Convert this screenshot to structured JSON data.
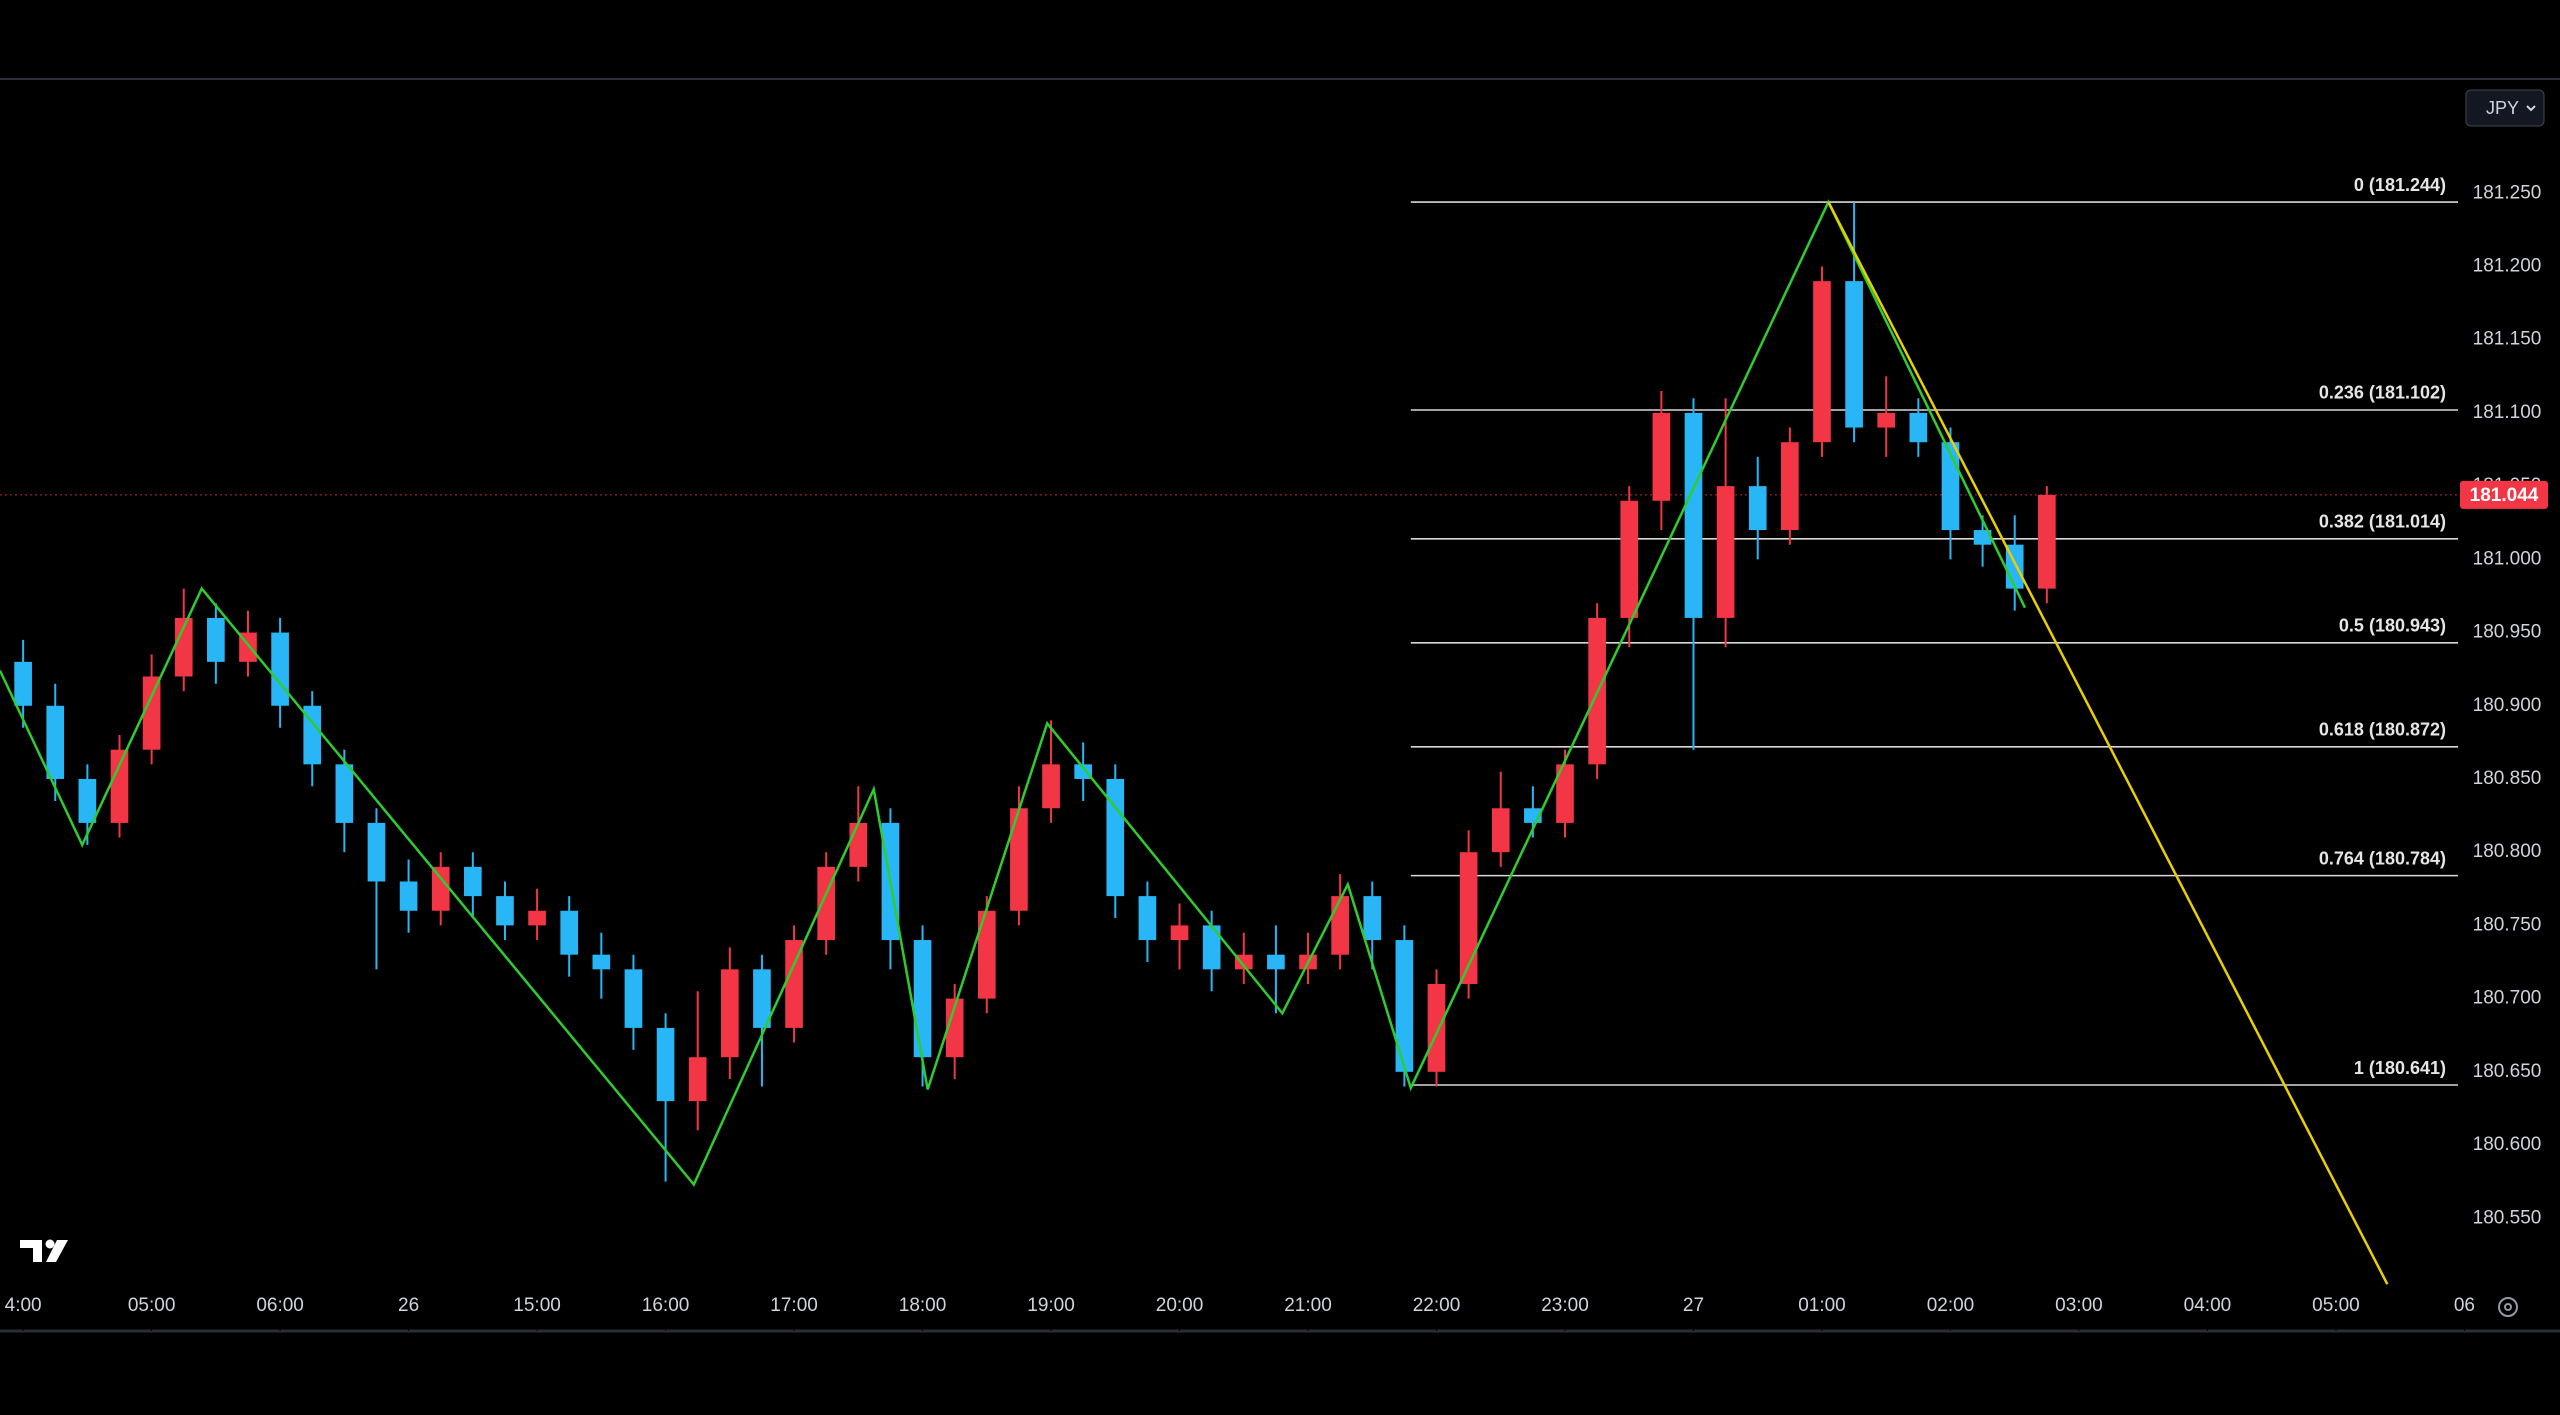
{
  "toolbar": {
    "currency": "JPY"
  },
  "chart_data": {
    "type": "candlestick",
    "up_color": "#f23645",
    "down_color": "#29b6f6",
    "xlim": [
      -0.18,
      18.95
    ],
    "ylim": [
      180.473,
      181.326
    ],
    "xticks": [
      {
        "value": 0,
        "label": "4:00"
      },
      {
        "value": 1,
        "label": "05:00"
      },
      {
        "value": 2,
        "label": "06:00"
      },
      {
        "value": 3,
        "label": "26"
      },
      {
        "value": 4,
        "label": "15:00"
      },
      {
        "value": 5,
        "label": "16:00"
      },
      {
        "value": 6,
        "label": "17:00"
      },
      {
        "value": 7,
        "label": "18:00"
      },
      {
        "value": 8,
        "label": "19:00"
      },
      {
        "value": 9,
        "label": "20:00"
      },
      {
        "value": 10,
        "label": "21:00"
      },
      {
        "value": 11,
        "label": "22:00"
      },
      {
        "value": 12,
        "label": "23:00"
      },
      {
        "value": 13,
        "label": "27"
      },
      {
        "value": 14,
        "label": "01:00"
      },
      {
        "value": 15,
        "label": "02:00"
      },
      {
        "value": 16,
        "label": "03:00"
      },
      {
        "value": 17,
        "label": "04:00"
      },
      {
        "value": 18,
        "label": "05:00"
      },
      {
        "value": 19,
        "label": "06"
      }
    ],
    "yticks": [
      {
        "value": 180.55,
        "label": "180.550"
      },
      {
        "value": 180.6,
        "label": "180.600"
      },
      {
        "value": 180.65,
        "label": "180.650"
      },
      {
        "value": 180.7,
        "label": "180.700"
      },
      {
        "value": 180.75,
        "label": "180.750"
      },
      {
        "value": 180.8,
        "label": "180.800"
      },
      {
        "value": 180.85,
        "label": "180.850"
      },
      {
        "value": 180.9,
        "label": "180.900"
      },
      {
        "value": 180.95,
        "label": "180.950"
      },
      {
        "value": 181.0,
        "label": "181.000"
      },
      {
        "value": 181.05,
        "label": "181.050"
      },
      {
        "value": 181.1,
        "label": "181.100"
      },
      {
        "value": 181.15,
        "label": "181.150"
      },
      {
        "value": 181.2,
        "label": "181.200"
      },
      {
        "value": 181.25,
        "label": "181.250"
      }
    ],
    "x": [
      0,
      0.25,
      0.5,
      0.75,
      1,
      1.25,
      1.5,
      1.75,
      2,
      2.25,
      2.5,
      2.75,
      3,
      3.25,
      3.5,
      3.75,
      4,
      4.25,
      4.5,
      4.75,
      5,
      5.25,
      5.5,
      5.75,
      6,
      6.25,
      6.5,
      6.75,
      7,
      7.25,
      7.5,
      7.75,
      8,
      8.25,
      8.5,
      8.75,
      9,
      9.25,
      9.5,
      9.75,
      10,
      10.25,
      10.5,
      10.75,
      11,
      11.25,
      11.5,
      11.75,
      12,
      12.25,
      12.5,
      12.75,
      13,
      13.25,
      13.5,
      13.75,
      14,
      14.25,
      14.5,
      14.75,
      15,
      15.25,
      15.5,
      15.75
    ],
    "open": [
      180.93,
      180.9,
      180.85,
      180.82,
      180.87,
      180.92,
      180.96,
      180.93,
      180.95,
      180.9,
      180.86,
      180.82,
      180.78,
      180.76,
      180.79,
      180.77,
      180.75,
      180.76,
      180.73,
      180.72,
      180.68,
      180.63,
      180.66,
      180.72,
      180.68,
      180.74,
      180.79,
      180.82,
      180.74,
      180.66,
      180.7,
      180.76,
      180.83,
      180.86,
      180.85,
      180.77,
      180.74,
      180.75,
      180.72,
      180.73,
      180.72,
      180.73,
      180.77,
      180.74,
      180.65,
      180.71,
      180.8,
      180.83,
      180.82,
      180.86,
      180.96,
      181.04,
      181.1,
      180.96,
      181.05,
      181.02,
      181.08,
      181.19,
      181.09,
      181.1,
      181.08,
      181.02,
      181.01,
      180.98
    ],
    "high": [
      180.945,
      180.915,
      180.86,
      180.88,
      180.935,
      180.98,
      180.97,
      180.965,
      180.96,
      180.91,
      180.87,
      180.83,
      180.795,
      180.8,
      180.8,
      180.78,
      180.775,
      180.77,
      180.745,
      180.73,
      180.69,
      180.705,
      180.735,
      180.73,
      180.75,
      180.8,
      180.845,
      180.83,
      180.75,
      180.71,
      180.77,
      180.845,
      180.89,
      180.875,
      180.86,
      180.78,
      180.765,
      180.76,
      180.745,
      180.75,
      180.745,
      180.785,
      180.78,
      180.75,
      180.72,
      180.815,
      180.855,
      180.845,
      180.87,
      180.97,
      181.05,
      181.115,
      181.11,
      181.11,
      181.07,
      181.09,
      181.2,
      181.244,
      181.125,
      181.11,
      181.09,
      181.03,
      181.03,
      181.05
    ],
    "low": [
      180.885,
      180.835,
      180.805,
      180.81,
      180.86,
      180.91,
      180.915,
      180.92,
      180.885,
      180.845,
      180.8,
      180.72,
      180.745,
      180.75,
      180.755,
      180.74,
      180.74,
      180.715,
      180.7,
      180.665,
      180.575,
      180.61,
      180.645,
      180.64,
      180.67,
      180.73,
      180.78,
      180.72,
      180.64,
      180.645,
      180.69,
      180.75,
      180.82,
      180.835,
      180.755,
      180.725,
      180.72,
      180.705,
      180.71,
      180.69,
      180.71,
      180.72,
      180.72,
      180.64,
      180.64,
      180.7,
      180.79,
      180.81,
      180.81,
      180.85,
      180.94,
      181.02,
      180.87,
      180.94,
      181.0,
      181.01,
      181.07,
      181.08,
      181.07,
      181.07,
      181.0,
      180.995,
      180.965,
      180.97
    ],
    "close": [
      180.9,
      180.85,
      180.82,
      180.87,
      180.92,
      180.96,
      180.93,
      180.95,
      180.9,
      180.86,
      180.82,
      180.78,
      180.76,
      180.79,
      180.77,
      180.75,
      180.76,
      180.73,
      180.72,
      180.68,
      180.63,
      180.66,
      180.72,
      180.68,
      180.74,
      180.79,
      180.82,
      180.74,
      180.66,
      180.7,
      180.76,
      180.83,
      180.86,
      180.85,
      180.77,
      180.74,
      180.75,
      180.72,
      180.73,
      180.72,
      180.73,
      180.77,
      180.74,
      180.65,
      180.71,
      180.8,
      180.83,
      180.82,
      180.86,
      180.96,
      181.04,
      181.1,
      180.96,
      181.05,
      181.02,
      181.08,
      181.19,
      181.09,
      181.1,
      181.08,
      181.02,
      181.01,
      180.98,
      181.044
    ],
    "zigzag": {
      "color": "#2ecc2e",
      "x": [
        -0.18,
        0.46,
        1.39,
        5.22,
        6.62,
        7.04,
        7.97,
        9.8,
        10.31,
        10.8,
        14.05,
        15.58
      ],
      "y": [
        180.924,
        180.805,
        180.98,
        180.573,
        180.843,
        180.638,
        180.888,
        180.69,
        180.778,
        180.639,
        181.244,
        180.967
      ]
    },
    "projection": {
      "color": "#e8d000",
      "x": [
        14.05,
        18.4
      ],
      "y": [
        181.244,
        180.505
      ]
    },
    "fibonacci": {
      "color": "#d8d8d8",
      "x": [
        10.8,
        18.95
      ],
      "levels": [
        {
          "value": 181.244,
          "label": "0 (181.244)"
        },
        {
          "value": 181.102,
          "label": "0.236 (181.102)"
        },
        {
          "value": 181.014,
          "label": "0.382 (181.014)"
        },
        {
          "value": 180.943,
          "label": "0.5 (180.943)"
        },
        {
          "value": 180.872,
          "label": "0.618 (180.872)"
        },
        {
          "value": 180.784,
          "label": "0.764 (180.784)"
        },
        {
          "value": 180.641,
          "label": "1 (180.641)"
        }
      ]
    },
    "last_price": {
      "value": 181.044,
      "label": "181.044",
      "color": "#f23645"
    }
  }
}
